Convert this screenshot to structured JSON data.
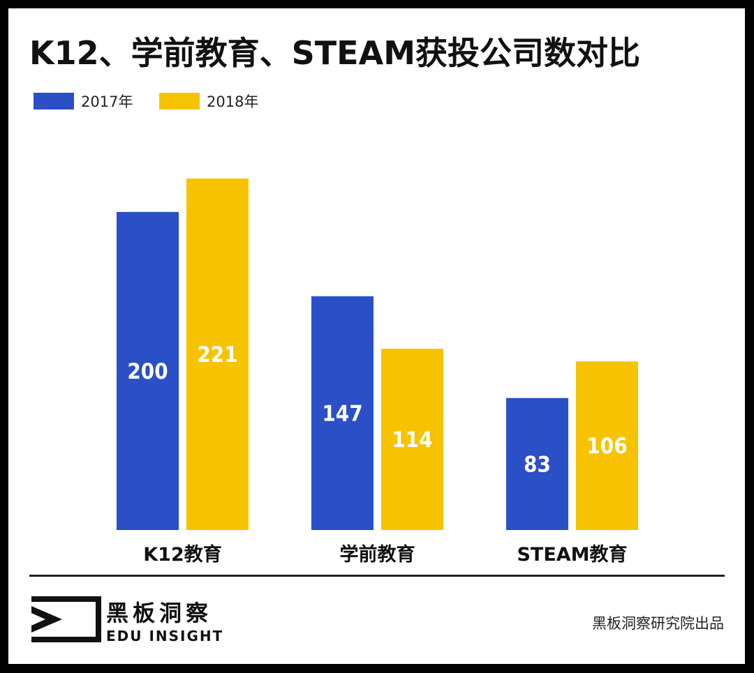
{
  "header": {
    "title": "K12、学前教育、STEAM获投公司数对比"
  },
  "chart_data": {
    "type": "bar",
    "title": "K12、学前教育、STEAM获投公司数对比",
    "categories": [
      "K12教育",
      "学前教育",
      "STEAM教育"
    ],
    "series": [
      {
        "name": "2017年",
        "values": [
          200,
          147,
          83
        ],
        "color": "#2b4fc6"
      },
      {
        "name": "2018年",
        "values": [
          221,
          114,
          106
        ],
        "color": "#f7c300"
      }
    ],
    "xlabel": "",
    "ylabel": "",
    "ylim": [
      0,
      240
    ],
    "grid": false,
    "legend_position": "top-left"
  },
  "footer": {
    "brand_cn": "黑板洞察",
    "brand_en": "EDU INSIGHT",
    "source": "黑板洞察研究院出品"
  }
}
